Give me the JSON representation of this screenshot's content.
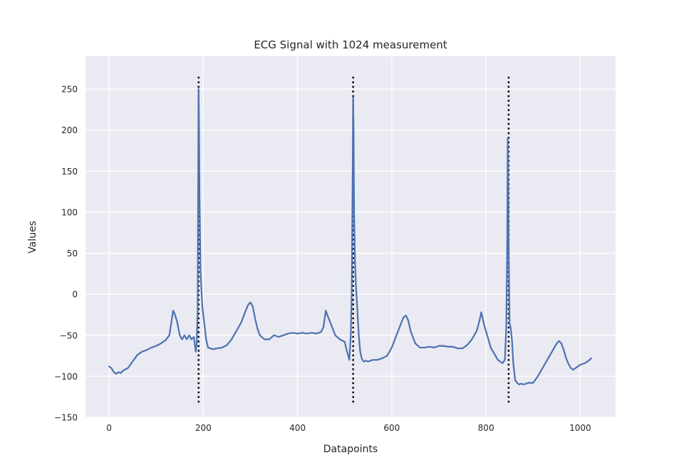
{
  "chart_data": {
    "type": "line",
    "title": "ECG Signal with 1024 measurement",
    "xlabel": "Datapoints",
    "ylabel": "Values",
    "xlim": [
      -50,
      1075
    ],
    "ylim": [
      -150,
      290
    ],
    "xticks": [
      0,
      200,
      400,
      600,
      800,
      1000
    ],
    "yticks": [
      -150,
      -100,
      -50,
      0,
      50,
      100,
      150,
      200,
      250
    ],
    "grid": true,
    "background": "#eaeaf2",
    "series": [
      {
        "color": "#4c72b0",
        "x": [
          0,
          5,
          10,
          15,
          20,
          25,
          30,
          40,
          50,
          60,
          70,
          80,
          90,
          100,
          110,
          120,
          128,
          132,
          136,
          140,
          145,
          150,
          155,
          160,
          165,
          170,
          175,
          180,
          184,
          186,
          188,
          189,
          190,
          191,
          192,
          194,
          196,
          198,
          200,
          203,
          206,
          210,
          215,
          220,
          230,
          240,
          250,
          260,
          270,
          280,
          290,
          295,
          300,
          305,
          310,
          315,
          320,
          330,
          340,
          350,
          360,
          370,
          380,
          390,
          400,
          410,
          420,
          430,
          440,
          450,
          455,
          460,
          465,
          470,
          480,
          490,
          500,
          505,
          510,
          513,
          515,
          517,
          518,
          519,
          520,
          522,
          524,
          527,
          530,
          533,
          536,
          540,
          545,
          550,
          560,
          570,
          580,
          590,
          600,
          610,
          620,
          625,
          630,
          635,
          640,
          650,
          660,
          670,
          680,
          690,
          700,
          710,
          720,
          730,
          740,
          750,
          760,
          770,
          780,
          785,
          790,
          793,
          797,
          800,
          805,
          810,
          815,
          820,
          825,
          830,
          835,
          840,
          843,
          845,
          846,
          847,
          848,
          850,
          852,
          855,
          858,
          862,
          866,
          870,
          875,
          880,
          890,
          900,
          910,
          920,
          930,
          940,
          950,
          955,
          960,
          965,
          970,
          975,
          980,
          985,
          990,
          1000,
          1010,
          1020,
          1023
        ],
        "y": [
          -88,
          -90,
          -95,
          -97,
          -95,
          -96,
          -93,
          -90,
          -82,
          -74,
          -70,
          -68,
          -65,
          -63,
          -60,
          -56,
          -50,
          -35,
          -20,
          -25,
          -35,
          -50,
          -55,
          -50,
          -55,
          -50,
          -55,
          -52,
          -70,
          -60,
          -20,
          120,
          250,
          200,
          120,
          30,
          5,
          -15,
          -25,
          -40,
          -55,
          -65,
          -66,
          -67,
          -66,
          -65,
          -62,
          -55,
          -45,
          -35,
          -20,
          -13,
          -10,
          -15,
          -30,
          -42,
          -50,
          -55,
          -55,
          -50,
          -52,
          -50,
          -48,
          -47,
          -48,
          -47,
          -48,
          -47,
          -48,
          -46,
          -40,
          -20,
          -28,
          -35,
          -50,
          -55,
          -58,
          -70,
          -80,
          -50,
          0,
          150,
          240,
          200,
          100,
          40,
          10,
          -20,
          -50,
          -70,
          -78,
          -82,
          -81,
          -82,
          -80,
          -80,
          -78,
          -75,
          -65,
          -50,
          -35,
          -28,
          -26,
          -32,
          -45,
          -60,
          -65,
          -65,
          -64,
          -65,
          -63,
          -63,
          -64,
          -64,
          -66,
          -66,
          -62,
          -55,
          -45,
          -35,
          -22,
          -30,
          -40,
          -45,
          -55,
          -65,
          -70,
          -75,
          -80,
          -82,
          -84,
          -80,
          -40,
          60,
          190,
          150,
          60,
          -35,
          -40,
          -55,
          -85,
          -105,
          -108,
          -110,
          -109,
          -110,
          -108,
          -108,
          -100,
          -90,
          -80,
          -70,
          -60,
          -57,
          -60,
          -68,
          -78,
          -85,
          -90,
          -92,
          -90,
          -86,
          -84,
          -80,
          -78
        ]
      }
    ],
    "vlines": {
      "x": [
        190,
        518,
        848
      ],
      "ymin": -132,
      "ymax": 265,
      "color": "#000000",
      "style": "dotted"
    }
  }
}
